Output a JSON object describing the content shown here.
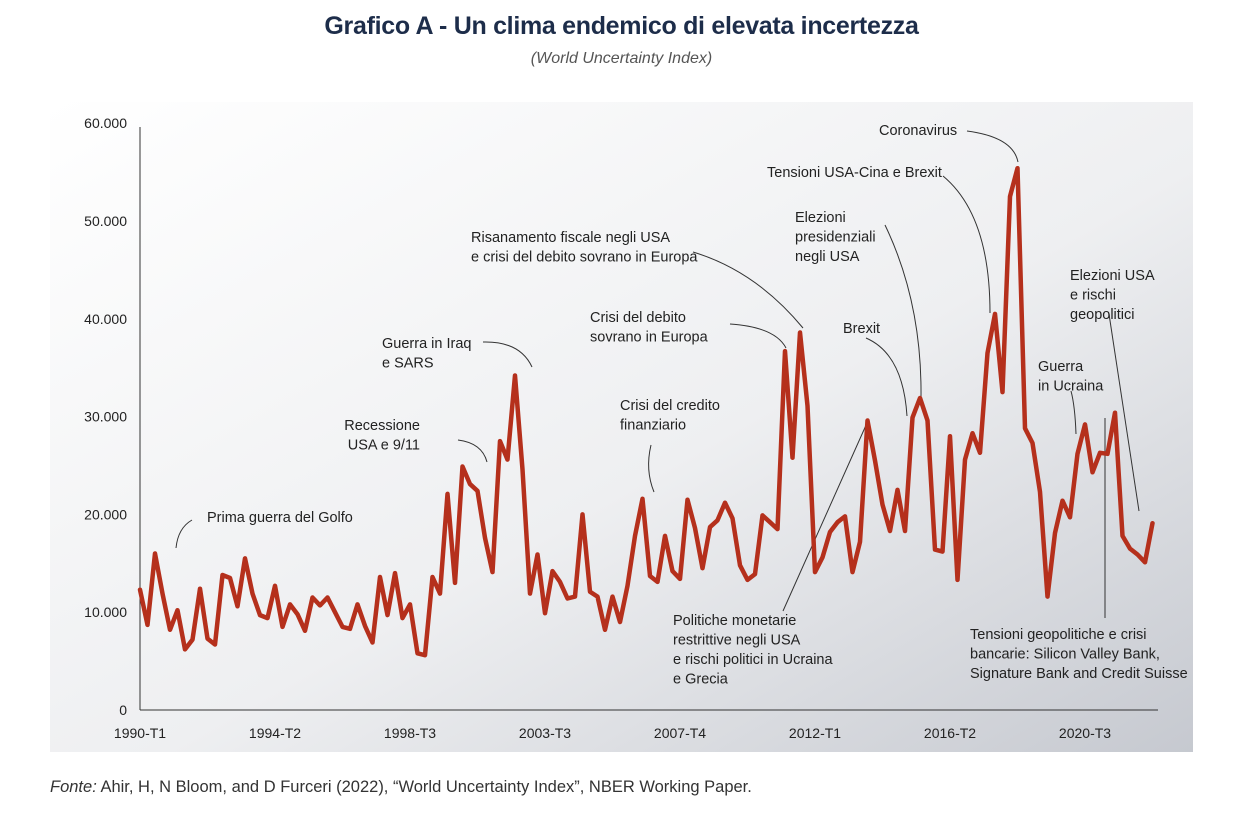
{
  "title": "Grafico A - Un clima endemico di elevata incertezza",
  "subtitle": "(World Uncertainty Index)",
  "source_prefix": "Fonte:",
  "source_text": " Ahir, H, N Bloom, and D Furceri (2022), “World Uncertainty Index”, NBER Working Paper.",
  "colors": {
    "line": "#b5301c",
    "title": "#1d2d4a",
    "panel_start": "#ffffff",
    "panel_end": "#c9ccd3"
  },
  "chart_data": {
    "type": "line",
    "xlabel": "",
    "ylabel": "",
    "ylim": [
      0,
      60000
    ],
    "grid": false,
    "y_ticks": [
      {
        "value": 0,
        "label": "0"
      },
      {
        "value": 10000,
        "label": "10.000"
      },
      {
        "value": 20000,
        "label": "20.000"
      },
      {
        "value": 30000,
        "label": "30.000"
      },
      {
        "value": 40000,
        "label": "40.000"
      },
      {
        "value": 50000,
        "label": "50.000"
      },
      {
        "value": 60000,
        "label": "60.000"
      }
    ],
    "x_ticks": [
      {
        "index": 0,
        "label": "1990-T1"
      },
      {
        "index": 18,
        "label": "1994-T2"
      },
      {
        "index": 36,
        "label": "1998-T3"
      },
      {
        "index": 54,
        "label": "2003-T3"
      },
      {
        "index": 72,
        "label": "2007-T4"
      },
      {
        "index": 90,
        "label": "2012-T1"
      },
      {
        "index": 108,
        "label": "2016-T2"
      },
      {
        "index": 126,
        "label": "2020-T3"
      }
    ],
    "series": [
      {
        "values": [
          12300,
          8700,
          16000,
          11900,
          8200,
          10200,
          6200,
          7200,
          12400,
          7300,
          6700,
          13800,
          13500,
          10600,
          15500,
          11900,
          9700,
          9400,
          12700,
          8500,
          10800,
          9800,
          8100,
          11500,
          10700,
          11500,
          10000,
          8500,
          8300,
          10800,
          8600,
          6900,
          13600,
          9700,
          14000,
          9400,
          10800,
          5800,
          5600,
          13600,
          11900,
          22100,
          13000,
          24900,
          23100,
          22400,
          17600,
          14100,
          27500,
          25600,
          34200,
          24600,
          11900,
          15900,
          9900,
          14200,
          13100,
          11400,
          11600,
          20000,
          12100,
          11600,
          8200,
          11600,
          9000,
          12700,
          17800,
          21600,
          13700,
          13100,
          17800,
          14200,
          13400,
          21500,
          18600,
          14500,
          18700,
          19400,
          21200,
          19600,
          14800,
          13300,
          13900,
          19900,
          19200,
          18500,
          36700,
          25800,
          38600,
          31100,
          14100,
          15600,
          18200,
          19200,
          19800,
          14100,
          17200,
          29600,
          25500,
          21000,
          18300,
          22500,
          18300,
          29900,
          31900,
          29600,
          16400,
          16200,
          28000,
          13300,
          25600,
          28300,
          26300,
          36500,
          40500,
          32500,
          52500,
          55400,
          28800,
          27300,
          22300,
          11600,
          18100,
          21400,
          19700,
          26200,
          29200,
          24300,
          26300,
          26200,
          30400,
          17800,
          16500,
          15900,
          15100,
          19100
        ]
      }
    ],
    "annotations": [
      {
        "text": "Prima guerra del Golfo"
      },
      {
        "text": "Recessione\nUSA e 9/11"
      },
      {
        "text": "Guerra in Iraq\ne SARS"
      },
      {
        "text": "Crisi del credito\nfinanziario"
      },
      {
        "text": "Risanamento fiscale negli USA\ne crisi del debito sovrano in Europa"
      },
      {
        "text": "Crisi del debito\nsovrano in Europa"
      },
      {
        "text": "Elezioni\npresidenziali\nnegli USA"
      },
      {
        "text": "Brexit"
      },
      {
        "text": "Tensioni USA-Cina e Brexit"
      },
      {
        "text": "Coronavirus"
      },
      {
        "text": "Elezioni USA\ne rischi\ngeopolitici"
      },
      {
        "text": "Guerra\nin Ucraina"
      },
      {
        "text": "Politiche monetarie\nrestrittive negli USA\ne rischi politici in Ucraina\ne Grecia"
      },
      {
        "text": "Tensioni geopolitiche e crisi\nbancarie: Silicon Valley Bank,\nSignature Bank and Credit Suisse"
      }
    ]
  }
}
